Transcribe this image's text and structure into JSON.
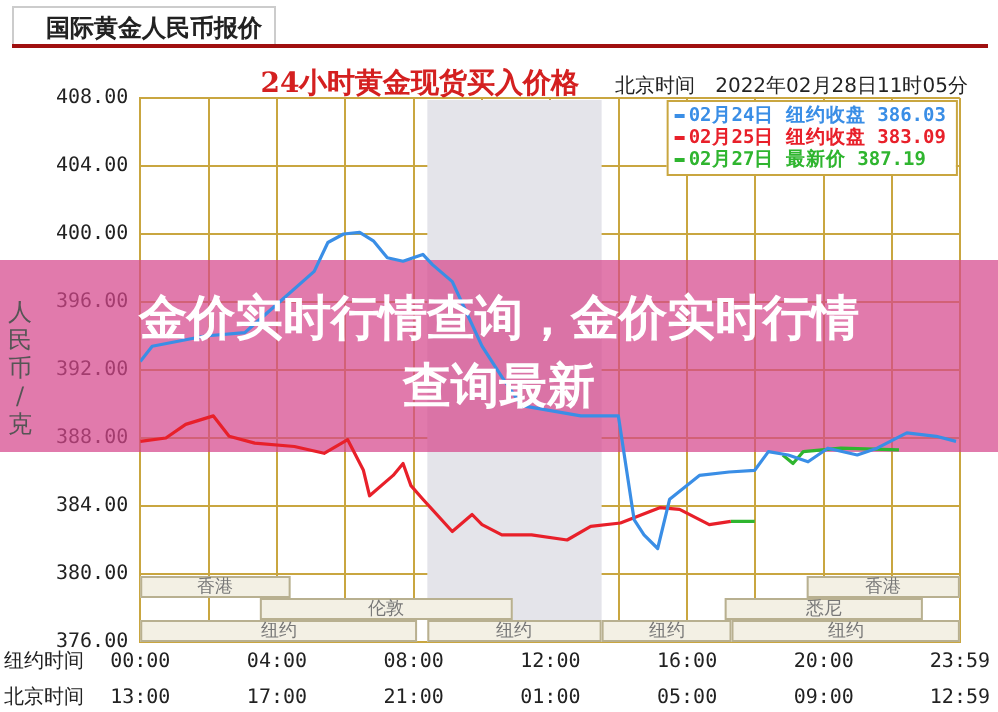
{
  "chart_data": {
    "type": "line",
    "title": "24小时黄金现货买入价格",
    "subtitle": "国际黄金人民币报价",
    "ylabel": "人民币/克",
    "xlabel": "纽约时间",
    "annotations": [
      "北京时间　2022年02月28日11时05分",
      "金价实时行情查询，金价实时行情查询最新",
      "北京时间",
      "13:00",
      "17:00",
      "21:00",
      "01:00",
      "05:00",
      "09:00",
      "12:59"
    ],
    "xlim": [
      0,
      23.983
    ],
    "xticks": [
      {
        "value": 0,
        "label": "00:00"
      },
      {
        "value": 2,
        "label": null
      },
      {
        "value": 4,
        "label": "04:00"
      },
      {
        "value": 6,
        "label": null
      },
      {
        "value": 8,
        "label": "08:00"
      },
      {
        "value": 10,
        "label": null
      },
      {
        "value": 12,
        "label": "12:00"
      },
      {
        "value": 14,
        "label": null
      },
      {
        "value": 16,
        "label": "16:00"
      },
      {
        "value": 18,
        "label": null
      },
      {
        "value": 20,
        "label": "20:00"
      },
      {
        "value": 22,
        "label": null
      },
      {
        "value": 23.983,
        "label": "23:59"
      }
    ],
    "ylim": [
      376,
      408
    ],
    "yticks": [
      {
        "value": 376,
        "label": "376.00"
      },
      {
        "value": 380,
        "label": "380.00"
      },
      {
        "value": 384,
        "label": "384.00"
      },
      {
        "value": 388,
        "label": "388.00"
      },
      {
        "value": 392,
        "label": "392.00"
      },
      {
        "value": 396,
        "label": "396.00"
      },
      {
        "value": 400,
        "label": "400.00"
      },
      {
        "value": 404,
        "label": "404.00"
      },
      {
        "value": 408,
        "label": "408.00"
      }
    ],
    "grid": true,
    "legend": "top right",
    "marker": "none",
    "line_style": "solid",
    "bands": [
      {
        "axis": "x",
        "from": 8.4,
        "to": 13.5,
        "color": "#e4e4ea"
      },
      {
        "axis": "x",
        "from": 0,
        "to": 8.1,
        "label": "纽约"
      },
      {
        "axis": "x",
        "from": 8.4,
        "to": 13.5,
        "label": "纽约"
      },
      {
        "axis": "x",
        "from": 13.5,
        "to": 17.3,
        "label": "纽约"
      },
      {
        "axis": "x",
        "from": 17.3,
        "to": 23.983,
        "label": "纽约"
      },
      {
        "axis": "x",
        "from": 3.5,
        "to": 10.9,
        "label": "伦敦"
      },
      {
        "axis": "x",
        "from": 17.1,
        "to": 22.9,
        "label": "悉尼"
      },
      {
        "axis": "x",
        "from": 0,
        "to": 4.4,
        "label": "香港"
      },
      {
        "axis": "x",
        "from": 19.5,
        "to": 23.983,
        "label": "香港"
      }
    ],
    "series": [
      {
        "name": "02月24日 纽约收盘 386.03",
        "color": "#3a8ee6",
        "x": [
          0,
          0.35,
          1.9,
          3.06,
          5.09,
          5.49,
          5.95,
          6.42,
          6.82,
          7.23,
          7.69,
          8.27,
          8.55,
          9.13,
          10,
          10.58,
          11.16,
          12.89,
          13.99,
          14.45,
          14.74,
          15.14,
          15.49,
          16.36,
          17.23,
          17.98,
          18.38,
          18.96,
          19.54,
          20.12,
          20.98,
          21.56,
          22.43,
          23.29,
          23.87
        ],
        "values": [
          392.5,
          393.4,
          394,
          394.2,
          397.8,
          399.5,
          400,
          400.1,
          399.6,
          398.6,
          398.4,
          398.8,
          398.2,
          397.2,
          393.4,
          391.6,
          389.9,
          389.3,
          389.3,
          383.2,
          382.3,
          381.5,
          384.4,
          385.8,
          386,
          386.1,
          387.2,
          387,
          386.6,
          387.4,
          387,
          387.4,
          388.3,
          388.1,
          387.8
        ]
      },
      {
        "name": "02月25日 纽约收盘 383.09",
        "color": "#e8202a",
        "x": [
          0,
          0.75,
          1.33,
          2.14,
          2.6,
          3.35,
          4.51,
          5.38,
          6.07,
          6.53,
          6.71,
          7.4,
          7.69,
          7.92,
          8.27,
          9.13,
          9.71,
          10,
          10.58,
          11.45,
          12.49,
          13.18,
          14.05,
          15.2,
          15.78,
          16.65,
          17.28
        ],
        "values": [
          387.8,
          388,
          388.8,
          389.3,
          388.1,
          387.7,
          387.5,
          387.1,
          387.9,
          386.1,
          384.6,
          385.8,
          386.5,
          385.2,
          384.4,
          382.5,
          383.5,
          382.9,
          382.3,
          382.3,
          382,
          382.8,
          383,
          383.9,
          383.8,
          382.9,
          383.1
        ]
      },
      {
        "name": "02月27日 最新价 387.19",
        "color": "#2fb52f",
        "x": [
          17.28,
          17.98,
          18.4,
          18.8,
          19.1,
          19.4,
          20.5,
          22.2
        ],
        "values": [
          383.1,
          383.1,
          null,
          387,
          386.5,
          387.2,
          387.4,
          387.3
        ]
      }
    ]
  }
}
